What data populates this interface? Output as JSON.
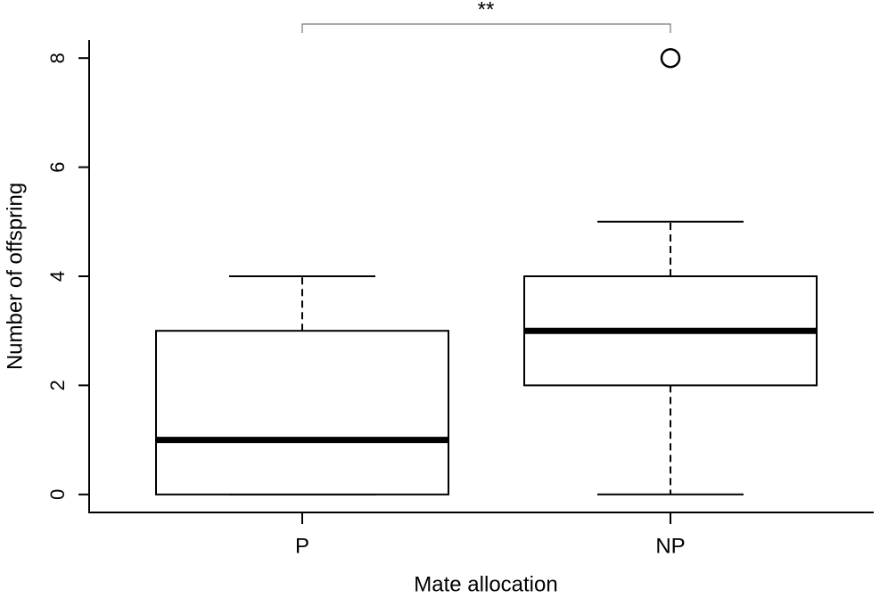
{
  "chart_data": {
    "type": "box",
    "annotation": "**",
    "x_label": "Mate allocation",
    "y_label": "Number of offspring",
    "categories": [
      "P",
      "NP"
    ],
    "boxes": [
      {
        "low": 0,
        "q1": 0,
        "median": 1,
        "q3": 3,
        "high": 4
      },
      {
        "low": 0,
        "q1": 2,
        "median": 3,
        "q3": 4,
        "high": 5,
        "outliers": [
          8
        ]
      }
    ],
    "ylim": [
      -0.33,
      8.33
    ],
    "yticks": [
      0,
      2,
      4,
      6,
      8
    ]
  }
}
